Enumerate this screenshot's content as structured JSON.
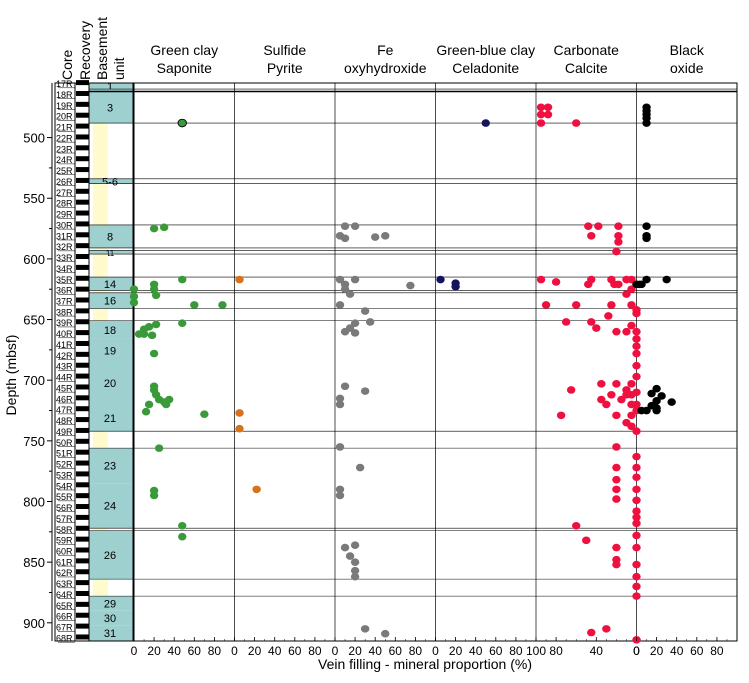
{
  "chart_data": {
    "type": "scatter",
    "ylabel": "Depth (mbsf)",
    "xlabel": "Vein filling - mineral proportion (%)",
    "ylim": [
      455,
      915
    ],
    "yticks": [
      500,
      550,
      600,
      650,
      700,
      750,
      800,
      850,
      900
    ],
    "track_headers": [
      "Core",
      "Recovery",
      "Basement",
      "unit"
    ],
    "cores": [
      "17R",
      "18R",
      "19R",
      "20R",
      "21R",
      "22R",
      "23R",
      "24R",
      "25R",
      "26R",
      "27R",
      "28R",
      "29R",
      "30R",
      "31R",
      "32R",
      "33R",
      "34R",
      "35R",
      "36R",
      "37R",
      "38R",
      "39R",
      "40R",
      "41R",
      "42R",
      "43R",
      "44R",
      "45R",
      "46R",
      "47R",
      "48R",
      "49R",
      "50R",
      "51R",
      "52R",
      "53R",
      "54R",
      "55R",
      "56R",
      "57R",
      "58R",
      "59R",
      "60R",
      "61R",
      "62R",
      "63R",
      "64R",
      "65R",
      "66R",
      "67R",
      "68R"
    ],
    "units": [
      {
        "label": "1",
        "top": 455,
        "bottom": 460,
        "fill": "#9fd0d0"
      },
      {
        "label": "",
        "top": 460,
        "bottom": 462,
        "fill": "#9fd0d0"
      },
      {
        "label": "3",
        "top": 462,
        "bottom": 488,
        "fill": "#9fd0d0"
      },
      {
        "label": "",
        "top": 488,
        "bottom": 534,
        "fill": "#fffbcc"
      },
      {
        "label": "5-6",
        "top": 534,
        "bottom": 538,
        "fill": "#9fd0d0"
      },
      {
        "label": "",
        "top": 538,
        "bottom": 572,
        "fill": "#fffbcc"
      },
      {
        "label": "8",
        "top": 572,
        "bottom": 591,
        "fill": "#9fd0d0"
      },
      {
        "label": "",
        "top": 591,
        "bottom": 593,
        "fill": "#fffbcc"
      },
      {
        "label": "11",
        "top": 593,
        "bottom": 596,
        "fill": "#9fd0d0"
      },
      {
        "label": "",
        "top": 596,
        "bottom": 615,
        "fill": "#fffbcc"
      },
      {
        "label": "14",
        "top": 615,
        "bottom": 626,
        "fill": "#9fd0d0"
      },
      {
        "label": "",
        "top": 626,
        "bottom": 628,
        "fill": "#fffbcc"
      },
      {
        "label": "16",
        "top": 628,
        "bottom": 641,
        "fill": "#9fd0d0"
      },
      {
        "label": "",
        "top": 641,
        "bottom": 651,
        "fill": "#fffbcc"
      },
      {
        "label": "18",
        "top": 651,
        "bottom": 666,
        "fill": "#9fd0d0"
      },
      {
        "label": "19",
        "top": 666,
        "bottom": 685,
        "fill": "#9fd0d0"
      },
      {
        "label": "20",
        "top": 685,
        "bottom": 720,
        "fill": "#9fd0d0"
      },
      {
        "label": "21",
        "top": 720,
        "bottom": 742,
        "fill": "#9fd0d0"
      },
      {
        "label": "",
        "top": 742,
        "bottom": 756,
        "fill": "#fffbcc"
      },
      {
        "label": "23",
        "top": 756,
        "bottom": 785,
        "fill": "#9fd0d0"
      },
      {
        "label": "24",
        "top": 785,
        "bottom": 822,
        "fill": "#9fd0d0"
      },
      {
        "label": "",
        "top": 822,
        "bottom": 824,
        "fill": "#fffbcc"
      },
      {
        "label": "26",
        "top": 824,
        "bottom": 864,
        "fill": "#9fd0d0"
      },
      {
        "label": "",
        "top": 864,
        "bottom": 878,
        "fill": "#fffbcc"
      },
      {
        "label": "29",
        "top": 878,
        "bottom": 890,
        "fill": "#9fd0d0"
      },
      {
        "label": "30",
        "top": 890,
        "bottom": 902,
        "fill": "#9fd0d0"
      },
      {
        "label": "31",
        "top": 902,
        "bottom": 915,
        "fill": "#9fd0d0"
      }
    ],
    "boundaries": [
      460,
      462,
      488,
      534,
      538,
      572,
      591,
      593,
      596,
      615,
      626,
      628,
      641,
      651,
      742,
      756,
      822,
      824,
      864,
      878
    ],
    "series": [
      {
        "name": "Green clay Saponite",
        "header": [
          "Green clay",
          "Saponite"
        ],
        "color": "#3a9a3a",
        "xticks": [
          0,
          20,
          40,
          60,
          80
        ],
        "points": [
          [
            48,
            488
          ],
          [
            48,
            488
          ],
          [
            20,
            575
          ],
          [
            30,
            574
          ],
          [
            48,
            617
          ],
          [
            0,
            625
          ],
          [
            20,
            621
          ],
          [
            0,
            631
          ],
          [
            0,
            636
          ],
          [
            20,
            625
          ],
          [
            60,
            638
          ],
          [
            22,
            630
          ],
          [
            88,
            638
          ],
          [
            15,
            656
          ],
          [
            48,
            653
          ],
          [
            22,
            654
          ],
          [
            10,
            658
          ],
          [
            10,
            662
          ],
          [
            18,
            663
          ],
          [
            5,
            662
          ],
          [
            20,
            678
          ],
          [
            20,
            705
          ],
          [
            20,
            708
          ],
          [
            22,
            712
          ],
          [
            25,
            716
          ],
          [
            30,
            718
          ],
          [
            32,
            720
          ],
          [
            35,
            716
          ],
          [
            15,
            720
          ],
          [
            12,
            726
          ],
          [
            70,
            728
          ],
          [
            25,
            756
          ],
          [
            20,
            791
          ],
          [
            20,
            795
          ],
          [
            48,
            820
          ],
          [
            48,
            829
          ]
        ]
      },
      {
        "name": "Sulfide Pyrite",
        "header": [
          "Sulfide",
          "Pyrite"
        ],
        "color": "#d4731a",
        "xticks": [
          0,
          20,
          40,
          60,
          80
        ],
        "points": [
          [
            5,
            617
          ],
          [
            5,
            727
          ],
          [
            5,
            740
          ],
          [
            22,
            790
          ]
        ]
      },
      {
        "name": "Fe oxyhydroxide",
        "header": [
          "Fe",
          "oxyhydroxide"
        ],
        "color": "#7a7a7a",
        "xticks": [
          0,
          20,
          40,
          60,
          80
        ],
        "points": [
          [
            10,
            573
          ],
          [
            20,
            573
          ],
          [
            5,
            581
          ],
          [
            10,
            583
          ],
          [
            40,
            582
          ],
          [
            50,
            581
          ],
          [
            5,
            617
          ],
          [
            20,
            617
          ],
          [
            10,
            621
          ],
          [
            75,
            622
          ],
          [
            10,
            625
          ],
          [
            15,
            629
          ],
          [
            5,
            638
          ],
          [
            30,
            643
          ],
          [
            35,
            652
          ],
          [
            20,
            653
          ],
          [
            15,
            657
          ],
          [
            10,
            660
          ],
          [
            20,
            661
          ],
          [
            10,
            705
          ],
          [
            30,
            709
          ],
          [
            5,
            715
          ],
          [
            5,
            720
          ],
          [
            5,
            755
          ],
          [
            25,
            772
          ],
          [
            5,
            790
          ],
          [
            5,
            795
          ],
          [
            10,
            838
          ],
          [
            20,
            836
          ],
          [
            15,
            845
          ],
          [
            20,
            850
          ],
          [
            20,
            857
          ],
          [
            20,
            862
          ],
          [
            30,
            905
          ],
          [
            50,
            909
          ]
        ]
      },
      {
        "name": "Green-blue clay Celadonite",
        "header": [
          "Green-blue clay",
          "Celadonite"
        ],
        "color": "#14145e",
        "xticks": [
          0,
          20,
          40,
          60,
          80
        ],
        "points": [
          [
            50,
            488
          ],
          [
            5,
            617
          ],
          [
            20,
            620
          ],
          [
            20,
            623
          ]
        ]
      },
      {
        "name": "Carbonate Calcite",
        "header": [
          "Carbonate",
          "Calcite"
        ],
        "color": "#f01040",
        "xticks": [
          100,
          80,
          40,
          0
        ],
        "points": [
          [
            88,
            475
          ],
          [
            95,
            475
          ],
          [
            95,
            481
          ],
          [
            88,
            481
          ],
          [
            95,
            488
          ],
          [
            60,
            488
          ],
          [
            48,
            573
          ],
          [
            38,
            573
          ],
          [
            18,
            573
          ],
          [
            45,
            581
          ],
          [
            18,
            581
          ],
          [
            18,
            586
          ],
          [
            20,
            594
          ],
          [
            95,
            617
          ],
          [
            80,
            619
          ],
          [
            45,
            617
          ],
          [
            25,
            617
          ],
          [
            10,
            617
          ],
          [
            5,
            617
          ],
          [
            18,
            621
          ],
          [
            22,
            621
          ],
          [
            0,
            621
          ],
          [
            48,
            621
          ],
          [
            5,
            625
          ],
          [
            10,
            629
          ],
          [
            90,
            638
          ],
          [
            60,
            638
          ],
          [
            25,
            638
          ],
          [
            5,
            638
          ],
          [
            0,
            642
          ],
          [
            0,
            645
          ],
          [
            28,
            647
          ],
          [
            70,
            652
          ],
          [
            45,
            652
          ],
          [
            5,
            655
          ],
          [
            40,
            657
          ],
          [
            20,
            660
          ],
          [
            10,
            660
          ],
          [
            0,
            660
          ],
          [
            0,
            666
          ],
          [
            0,
            672
          ],
          [
            0,
            678
          ],
          [
            0,
            688
          ],
          [
            0,
            697
          ],
          [
            5,
            703
          ],
          [
            20,
            703
          ],
          [
            35,
            703
          ],
          [
            10,
            708
          ],
          [
            65,
            708
          ],
          [
            0,
            710
          ],
          [
            5,
            712
          ],
          [
            10,
            712
          ],
          [
            25,
            712
          ],
          [
            15,
            716
          ],
          [
            35,
            716
          ],
          [
            5,
            720
          ],
          [
            30,
            720
          ],
          [
            0,
            720
          ],
          [
            0,
            725
          ],
          [
            5,
            729
          ],
          [
            75,
            729
          ],
          [
            20,
            729
          ],
          [
            10,
            735
          ],
          [
            5,
            738
          ],
          [
            0,
            742
          ],
          [
            20,
            755
          ],
          [
            0,
            763
          ],
          [
            0,
            772
          ],
          [
            20,
            772
          ],
          [
            0,
            780
          ],
          [
            20,
            782
          ],
          [
            0,
            790
          ],
          [
            20,
            790
          ],
          [
            20,
            798
          ],
          [
            0,
            799
          ],
          [
            0,
            808
          ],
          [
            0,
            813
          ],
          [
            0,
            818
          ],
          [
            60,
            820
          ],
          [
            0,
            828
          ],
          [
            50,
            832
          ],
          [
            20,
            838
          ],
          [
            0,
            838
          ],
          [
            20,
            848
          ],
          [
            20,
            852
          ],
          [
            0,
            852
          ],
          [
            0,
            862
          ],
          [
            0,
            870
          ],
          [
            0,
            878
          ],
          [
            30,
            905
          ],
          [
            45,
            908
          ],
          [
            0,
            914
          ]
        ]
      },
      {
        "name": "Black oxide",
        "header": [
          "Black",
          "oxide"
        ],
        "color": "#000000",
        "xticks": [
          0,
          20,
          40,
          60,
          80
        ],
        "points": [
          [
            10,
            475
          ],
          [
            10,
            478
          ],
          [
            10,
            481
          ],
          [
            10,
            484
          ],
          [
            10,
            488
          ],
          [
            10,
            573
          ],
          [
            10,
            581
          ],
          [
            10,
            583
          ],
          [
            10,
            617
          ],
          [
            30,
            617
          ],
          [
            0,
            621
          ],
          [
            3,
            621
          ],
          [
            5,
            621
          ],
          [
            15,
            711
          ],
          [
            20,
            707
          ],
          [
            25,
            713
          ],
          [
            20,
            717
          ],
          [
            35,
            718
          ],
          [
            15,
            721
          ],
          [
            20,
            723
          ],
          [
            5,
            725
          ],
          [
            10,
            725
          ],
          [
            20,
            725
          ]
        ]
      }
    ]
  }
}
